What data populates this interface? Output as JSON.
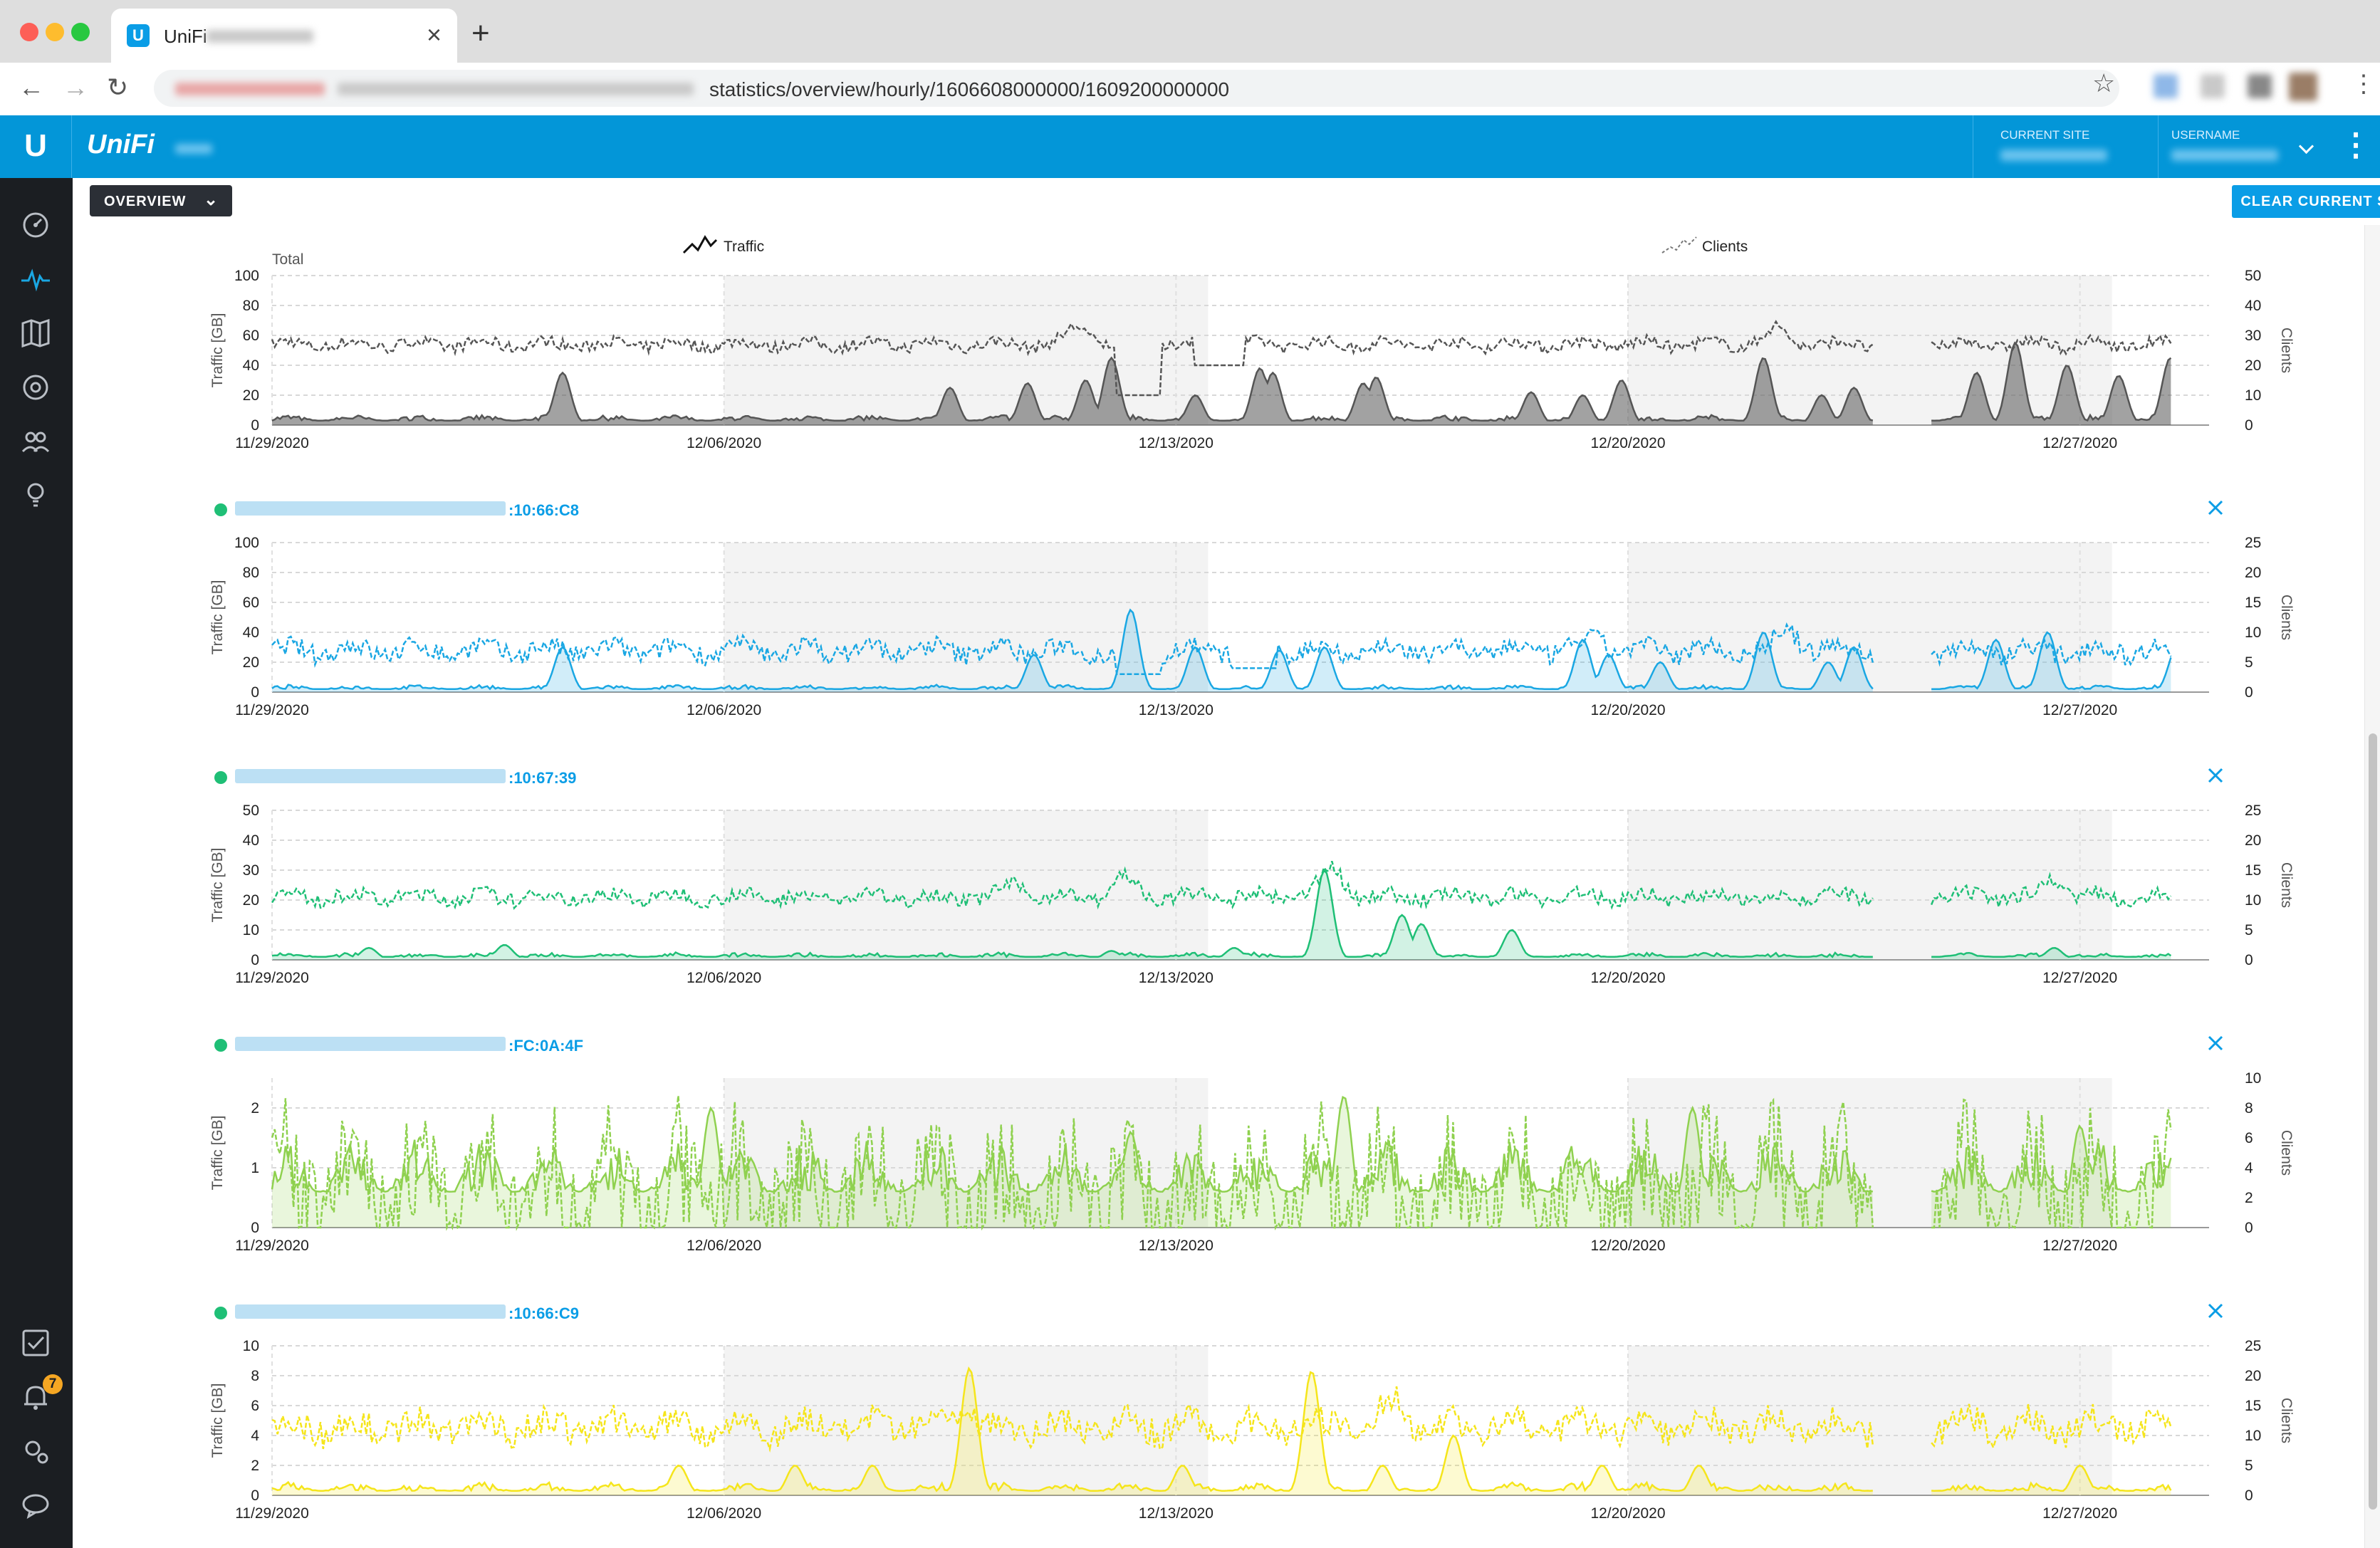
{
  "browser": {
    "tab_title": "UniFi",
    "url_tail": "statistics/overview/hourly/1606608000000/1609200000000",
    "tab_close": "×",
    "new_tab": "+"
  },
  "header": {
    "brand": "UniFi",
    "current_site_label": "CURRENT SITE",
    "username_label": "USERNAME"
  },
  "sidebar": {
    "icons": [
      "dashboard-icon",
      "statistics-icon",
      "map-icon",
      "devices-icon",
      "clients-icon",
      "insights-icon",
      "tasks-icon",
      "alerts-icon",
      "settings-icon",
      "chat-icon"
    ],
    "alert_count": "7"
  },
  "toolbar": {
    "overview_label": "OVERVIEW",
    "clear_label": "CLEAR CURRENT STATS"
  },
  "legend": {
    "traffic": "Traffic",
    "clients": "Clients",
    "total": "Total"
  },
  "colors": {
    "accent": "#0a9de6",
    "total": "#555555",
    "ap1": "#1aa7e3",
    "ap2": "#1fbf76",
    "ap3": "#8fd14f",
    "ap4": "#f5e51b",
    "online": "#1fbf76"
  },
  "chart_data": [
    {
      "type": "area",
      "title": "Total",
      "ylabel": "Traffic [GB]",
      "y2label": "Clients",
      "ylim": [
        0,
        100
      ],
      "y2lim": [
        0,
        50
      ],
      "yticks": [
        "100",
        "80",
        "60",
        "40",
        "20",
        "0"
      ],
      "y2ticks": [
        "50",
        "40",
        "30",
        "20",
        "10",
        "0"
      ],
      "x_start": "11/29/2020",
      "x_end": "12/29/2020",
      "gap": [
        "12/23/2020",
        "12/24/2020"
      ],
      "xticks": [
        "11/29/2020",
        "12/06/2020",
        "12/13/2020",
        "12/20/2020",
        "12/27/2020"
      ],
      "shaded": [
        [
          "12/06/2020",
          "12/13/2020"
        ],
        [
          "12/20/2020",
          "12/27/2020"
        ]
      ],
      "traffic_base": 3,
      "traffic_noise": 4,
      "traffic_spikes": [
        [
          4.5,
          35
        ],
        [
          10.5,
          25
        ],
        [
          11.7,
          28
        ],
        [
          12.6,
          30
        ],
        [
          13,
          45
        ],
        [
          14.3,
          20
        ],
        [
          15.3,
          38
        ],
        [
          15.5,
          35
        ],
        [
          16.9,
          28
        ],
        [
          17.1,
          32
        ],
        [
          19.5,
          22
        ],
        [
          20.3,
          20
        ],
        [
          20.9,
          30
        ],
        [
          23.1,
          45
        ],
        [
          24,
          20
        ],
        [
          24.5,
          25
        ],
        [
          26.4,
          35
        ],
        [
          27,
          55
        ],
        [
          27.8,
          40
        ],
        [
          28.6,
          33
        ],
        [
          29.4,
          45
        ]
      ],
      "clients_base": 27,
      "clients_noise": 2,
      "clients_dips": [
        [
          13.4,
          10
        ],
        [
          14.6,
          20
        ],
        [
          14.7,
          20
        ]
      ],
      "clients_bumps": [
        [
          12.5,
          6
        ],
        [
          23.3,
          5
        ]
      ]
    },
    {
      "type": "area",
      "device_label": ":10:66:C8",
      "ylabel": "Traffic [GB]",
      "y2label": "Clients",
      "ylim": [
        0,
        100
      ],
      "y2lim": [
        0,
        25
      ],
      "yticks": [
        "100",
        "80",
        "60",
        "40",
        "20",
        "0"
      ],
      "y2ticks": [
        "25",
        "20",
        "15",
        "10",
        "5",
        "0"
      ],
      "x_start": "11/29/2020",
      "x_end": "12/29/2020",
      "gap": [
        "12/23/2020",
        "12/24/2020"
      ],
      "xticks": [
        "11/29/2020",
        "12/06/2020",
        "12/13/2020",
        "12/20/2020",
        "12/27/2020"
      ],
      "shaded": [
        [
          "12/06/2020",
          "12/13/2020"
        ],
        [
          "12/20/2020",
          "12/27/2020"
        ]
      ],
      "traffic_base": 2,
      "traffic_noise": 3,
      "traffic_spikes": [
        [
          4.5,
          30
        ],
        [
          11.8,
          25
        ],
        [
          13.3,
          55
        ],
        [
          14.3,
          30
        ],
        [
          15.6,
          28
        ],
        [
          16.3,
          30
        ],
        [
          20.3,
          35
        ],
        [
          20.7,
          25
        ],
        [
          21.5,
          20
        ],
        [
          23.1,
          40
        ],
        [
          24.1,
          20
        ],
        [
          24.5,
          30
        ],
        [
          26.7,
          35
        ],
        [
          27.5,
          40
        ],
        [
          29.5,
          30
        ]
      ],
      "clients_base": 7,
      "clients_noise": 1.6,
      "clients_dips": [
        [
          13.4,
          3
        ],
        [
          15.2,
          4
        ]
      ],
      "clients_bumps": [
        [
          23.5,
          3
        ],
        [
          20.5,
          2
        ]
      ]
    },
    {
      "type": "area",
      "device_label": ":10:67:39",
      "ylabel": "Traffic [GB]",
      "y2label": "Clients",
      "ylim": [
        0,
        50
      ],
      "y2lim": [
        0,
        25
      ],
      "yticks": [
        "50",
        "40",
        "30",
        "20",
        "10",
        "0"
      ],
      "y2ticks": [
        "25",
        "20",
        "15",
        "10",
        "5",
        "0"
      ],
      "x_start": "11/29/2020",
      "x_end": "12/29/2020",
      "gap": [
        "12/23/2020",
        "12/24/2020"
      ],
      "xticks": [
        "11/29/2020",
        "12/06/2020",
        "12/13/2020",
        "12/20/2020",
        "12/27/2020"
      ],
      "shaded": [
        [
          "12/06/2020",
          "12/13/2020"
        ],
        [
          "12/20/2020",
          "12/27/2020"
        ]
      ],
      "traffic_base": 1,
      "traffic_noise": 1.5,
      "traffic_spikes": [
        [
          1.5,
          4
        ],
        [
          3.6,
          5
        ],
        [
          13,
          3
        ],
        [
          14.9,
          4
        ],
        [
          16.3,
          30
        ],
        [
          17.5,
          15
        ],
        [
          17.8,
          12
        ],
        [
          19.2,
          10
        ],
        [
          25.1,
          8
        ],
        [
          27.6,
          4
        ]
      ],
      "clients_base": 10.5,
      "clients_noise": 1.2,
      "clients_dips": [],
      "clients_bumps": [
        [
          11.5,
          2
        ],
        [
          13.2,
          3
        ],
        [
          16.4,
          5
        ],
        [
          27.6,
          3
        ]
      ]
    },
    {
      "type": "area",
      "device_label": ":FC:0A:4F",
      "ylabel": "Traffic [GB]",
      "y2label": "Clients",
      "ylim": [
        0,
        2.5
      ],
      "y2lim": [
        0,
        10
      ],
      "yticks": [
        "2",
        "1",
        "0"
      ],
      "ytick_values": [
        2,
        1,
        0
      ],
      "y2ticks": [
        "10",
        "8",
        "6",
        "4",
        "2",
        "0"
      ],
      "x_start": "11/29/2020",
      "x_end": "12/29/2020",
      "gap": [
        "12/23/2020",
        "12/24/2020"
      ],
      "xticks": [
        "11/29/2020",
        "12/06/2020",
        "12/13/2020",
        "12/20/2020",
        "12/27/2020"
      ],
      "shaded": [
        [
          "12/06/2020",
          "12/13/2020"
        ],
        [
          "12/20/2020",
          "12/27/2020"
        ]
      ],
      "traffic_base": 0.6,
      "traffic_noise": 0.9,
      "traffic_spikes": [
        [
          6.8,
          2
        ],
        [
          13.3,
          1.6
        ],
        [
          16.6,
          2.2
        ],
        [
          22,
          2
        ],
        [
          28,
          1.7
        ]
      ],
      "clients_base": 2.2,
      "clients_noise": 4.2,
      "clients_dips": [],
      "clients_bumps": []
    },
    {
      "type": "area",
      "device_label": ":10:66:C9",
      "ylabel": "Traffic [GB]",
      "y2label": "Clients",
      "ylim": [
        0,
        10
      ],
      "y2lim": [
        0,
        25
      ],
      "yticks": [
        "10",
        "8",
        "6",
        "4",
        "2",
        "0"
      ],
      "y2ticks": [
        "25",
        "20",
        "15",
        "10",
        "5",
        "0"
      ],
      "x_start": "11/29/2020",
      "x_end": "12/29/2020",
      "gap": [
        "12/23/2020",
        "12/24/2020"
      ],
      "xticks": [
        "11/29/2020",
        "12/06/2020",
        "12/13/2020",
        "12/20/2020",
        "12/27/2020"
      ],
      "shaded": [
        [
          "12/06/2020",
          "12/13/2020"
        ],
        [
          "12/20/2020",
          "12/27/2020"
        ]
      ],
      "traffic_base": 0.3,
      "traffic_noise": 0.6,
      "traffic_spikes": [
        [
          6.3,
          2
        ],
        [
          8.1,
          2
        ],
        [
          9.3,
          2
        ],
        [
          10.8,
          8.5
        ],
        [
          14.1,
          2
        ],
        [
          16.1,
          8.3
        ],
        [
          17.2,
          2
        ],
        [
          18.3,
          4
        ],
        [
          20.6,
          2
        ],
        [
          22.1,
          2
        ],
        [
          28,
          2
        ]
      ],
      "clients_base": 11.5,
      "clients_noise": 2.4,
      "clients_dips": [],
      "clients_bumps": [
        [
          17.4,
          4
        ],
        [
          10.7,
          3
        ]
      ]
    }
  ]
}
